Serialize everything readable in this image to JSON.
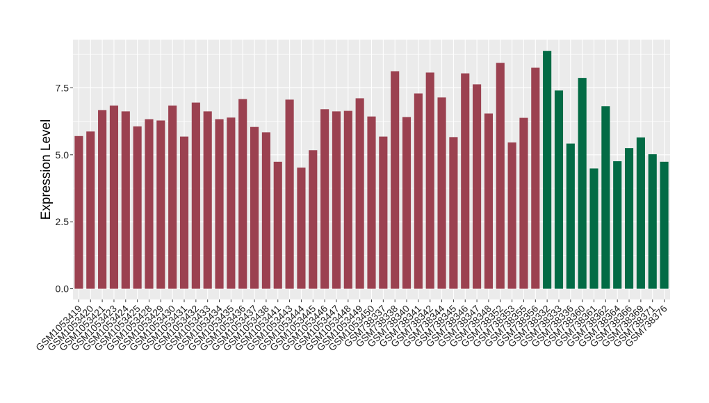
{
  "chart_data": {
    "type": "bar",
    "title": "",
    "xlabel": "",
    "ylabel": "Expression Level",
    "ylim": [
      -0.4,
      9.3
    ],
    "yticks": [
      0.0,
      2.5,
      5.0,
      7.5
    ],
    "ytick_labels": [
      "0.0",
      "2.5",
      "5.0",
      "7.5"
    ],
    "grid": true,
    "legend": "none",
    "colors": {
      "panel_background": "#EBEBEB",
      "grid": "#FFFFFF",
      "group_a": "#9B4150",
      "group_b": "#036B45"
    },
    "categories": [
      "GSM1053419",
      "GSM1053420",
      "GSM1053421",
      "GSM1053423",
      "GSM1053424",
      "GSM1053425",
      "GSM1053428",
      "GSM1053429",
      "GSM1053430",
      "GSM1053431",
      "GSM1053432",
      "GSM1053433",
      "GSM1053434",
      "GSM1053435",
      "GSM1053436",
      "GSM1053437",
      "GSM1053438",
      "GSM1053441",
      "GSM1053443",
      "GSM1053444",
      "GSM1053445",
      "GSM1053446",
      "GSM1053447",
      "GSM1053448",
      "GSM1053449",
      "GSM1053450",
      "GSM738337",
      "GSM738338",
      "GSM738340",
      "GSM738341",
      "GSM738342",
      "GSM738344",
      "GSM738345",
      "GSM738346",
      "GSM738347",
      "GSM738348",
      "GSM738352",
      "GSM738353",
      "GSM738355",
      "GSM738356",
      "GSM738332",
      "GSM738333",
      "GSM738336",
      "GSM738360",
      "GSM738361",
      "GSM738362",
      "GSM738364",
      "GSM738366",
      "GSM738369",
      "GSM738371",
      "GSM738376"
    ],
    "values": [
      5.7,
      5.87,
      6.67,
      6.84,
      6.62,
      6.06,
      6.33,
      6.28,
      6.84,
      5.68,
      6.95,
      6.62,
      6.33,
      6.39,
      7.08,
      6.04,
      5.84,
      4.74,
      7.06,
      4.52,
      5.17,
      6.7,
      6.62,
      6.64,
      7.11,
      6.43,
      5.68,
      8.12,
      6.41,
      7.29,
      8.07,
      7.14,
      5.66,
      8.04,
      7.63,
      6.54,
      8.43,
      5.46,
      6.38,
      8.25,
      8.88,
      7.4,
      5.42,
      7.87,
      4.49,
      6.81,
      4.76,
      5.25,
      5.65,
      5.02,
      4.74
    ],
    "groups": [
      "a",
      "a",
      "a",
      "a",
      "a",
      "a",
      "a",
      "a",
      "a",
      "a",
      "a",
      "a",
      "a",
      "a",
      "a",
      "a",
      "a",
      "a",
      "a",
      "a",
      "a",
      "a",
      "a",
      "a",
      "a",
      "a",
      "a",
      "a",
      "a",
      "a",
      "a",
      "a",
      "a",
      "a",
      "a",
      "a",
      "a",
      "a",
      "a",
      "a",
      "b",
      "b",
      "b",
      "b",
      "b",
      "b",
      "b",
      "b",
      "b",
      "b",
      "b"
    ]
  }
}
